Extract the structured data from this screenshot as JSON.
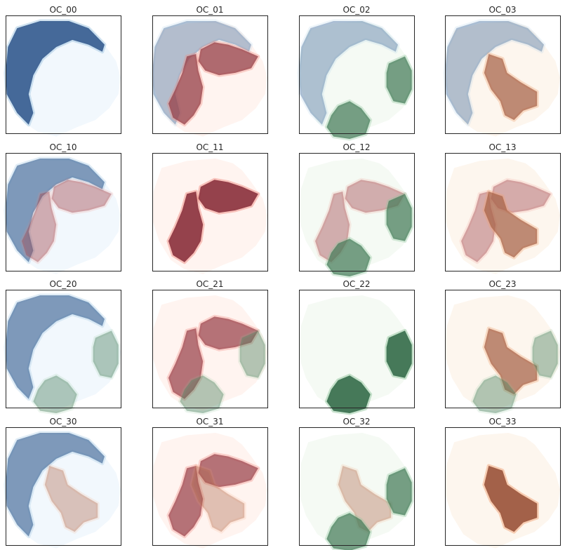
{
  "chart_data": {
    "type": "heatmap",
    "layout": "4x4 grid of map panels",
    "background": "#ffffff",
    "axes": {
      "ticks": false,
      "grid": false
    },
    "colors": {
      "blue": "#3d6293",
      "red": "#8f3a45",
      "green": "#3e7352",
      "orange": "#9e5b42",
      "red_light": "#f08a7f",
      "blue_light": "#9dc3e0",
      "green_light": "#8cc49a",
      "orange_light": "#f0a070"
    },
    "panels": [
      {
        "title": "OC_00",
        "weights": {
          "b": 0.95,
          "r": 0.0,
          "g": 0.0,
          "o": 0.0
        }
      },
      {
        "title": "OC_01",
        "weights": {
          "b": 0.35,
          "r": 0.7,
          "g": 0.0,
          "o": 0.0
        }
      },
      {
        "title": "OC_02",
        "weights": {
          "b": 0.35,
          "r": 0.0,
          "g": 0.65,
          "o": 0.0
        }
      },
      {
        "title": "OC_03",
        "weights": {
          "b": 0.35,
          "r": 0.0,
          "g": 0.0,
          "o": 0.65
        }
      },
      {
        "title": "OC_10",
        "weights": {
          "b": 0.6,
          "r": 0.35,
          "g": 0.0,
          "o": 0.0
        }
      },
      {
        "title": "OC_11",
        "weights": {
          "b": 0.0,
          "r": 0.95,
          "g": 0.0,
          "o": 0.0
        }
      },
      {
        "title": "OC_12",
        "weights": {
          "b": 0.0,
          "r": 0.35,
          "g": 0.65,
          "o": 0.0
        }
      },
      {
        "title": "OC_13",
        "weights": {
          "b": 0.0,
          "r": 0.35,
          "g": 0.0,
          "o": 0.65
        }
      },
      {
        "title": "OC_20",
        "weights": {
          "b": 0.6,
          "r": 0.0,
          "g": 0.35,
          "o": 0.0
        }
      },
      {
        "title": "OC_21",
        "weights": {
          "b": 0.0,
          "r": 0.65,
          "g": 0.35,
          "o": 0.0
        }
      },
      {
        "title": "OC_22",
        "weights": {
          "b": 0.0,
          "r": 0.0,
          "g": 0.95,
          "o": 0.0
        }
      },
      {
        "title": "OC_23",
        "weights": {
          "b": 0.0,
          "r": 0.0,
          "g": 0.35,
          "o": 0.65
        }
      },
      {
        "title": "OC_30",
        "weights": {
          "b": 0.6,
          "r": 0.0,
          "g": 0.0,
          "o": 0.3
        }
      },
      {
        "title": "OC_31",
        "weights": {
          "b": 0.0,
          "r": 0.65,
          "g": 0.0,
          "o": 0.3
        }
      },
      {
        "title": "OC_32",
        "weights": {
          "b": 0.0,
          "r": 0.0,
          "g": 0.65,
          "o": 0.3
        }
      },
      {
        "title": "OC_33",
        "weights": {
          "b": 0.0,
          "r": 0.0,
          "g": 0.0,
          "o": 0.95
        }
      }
    ]
  }
}
